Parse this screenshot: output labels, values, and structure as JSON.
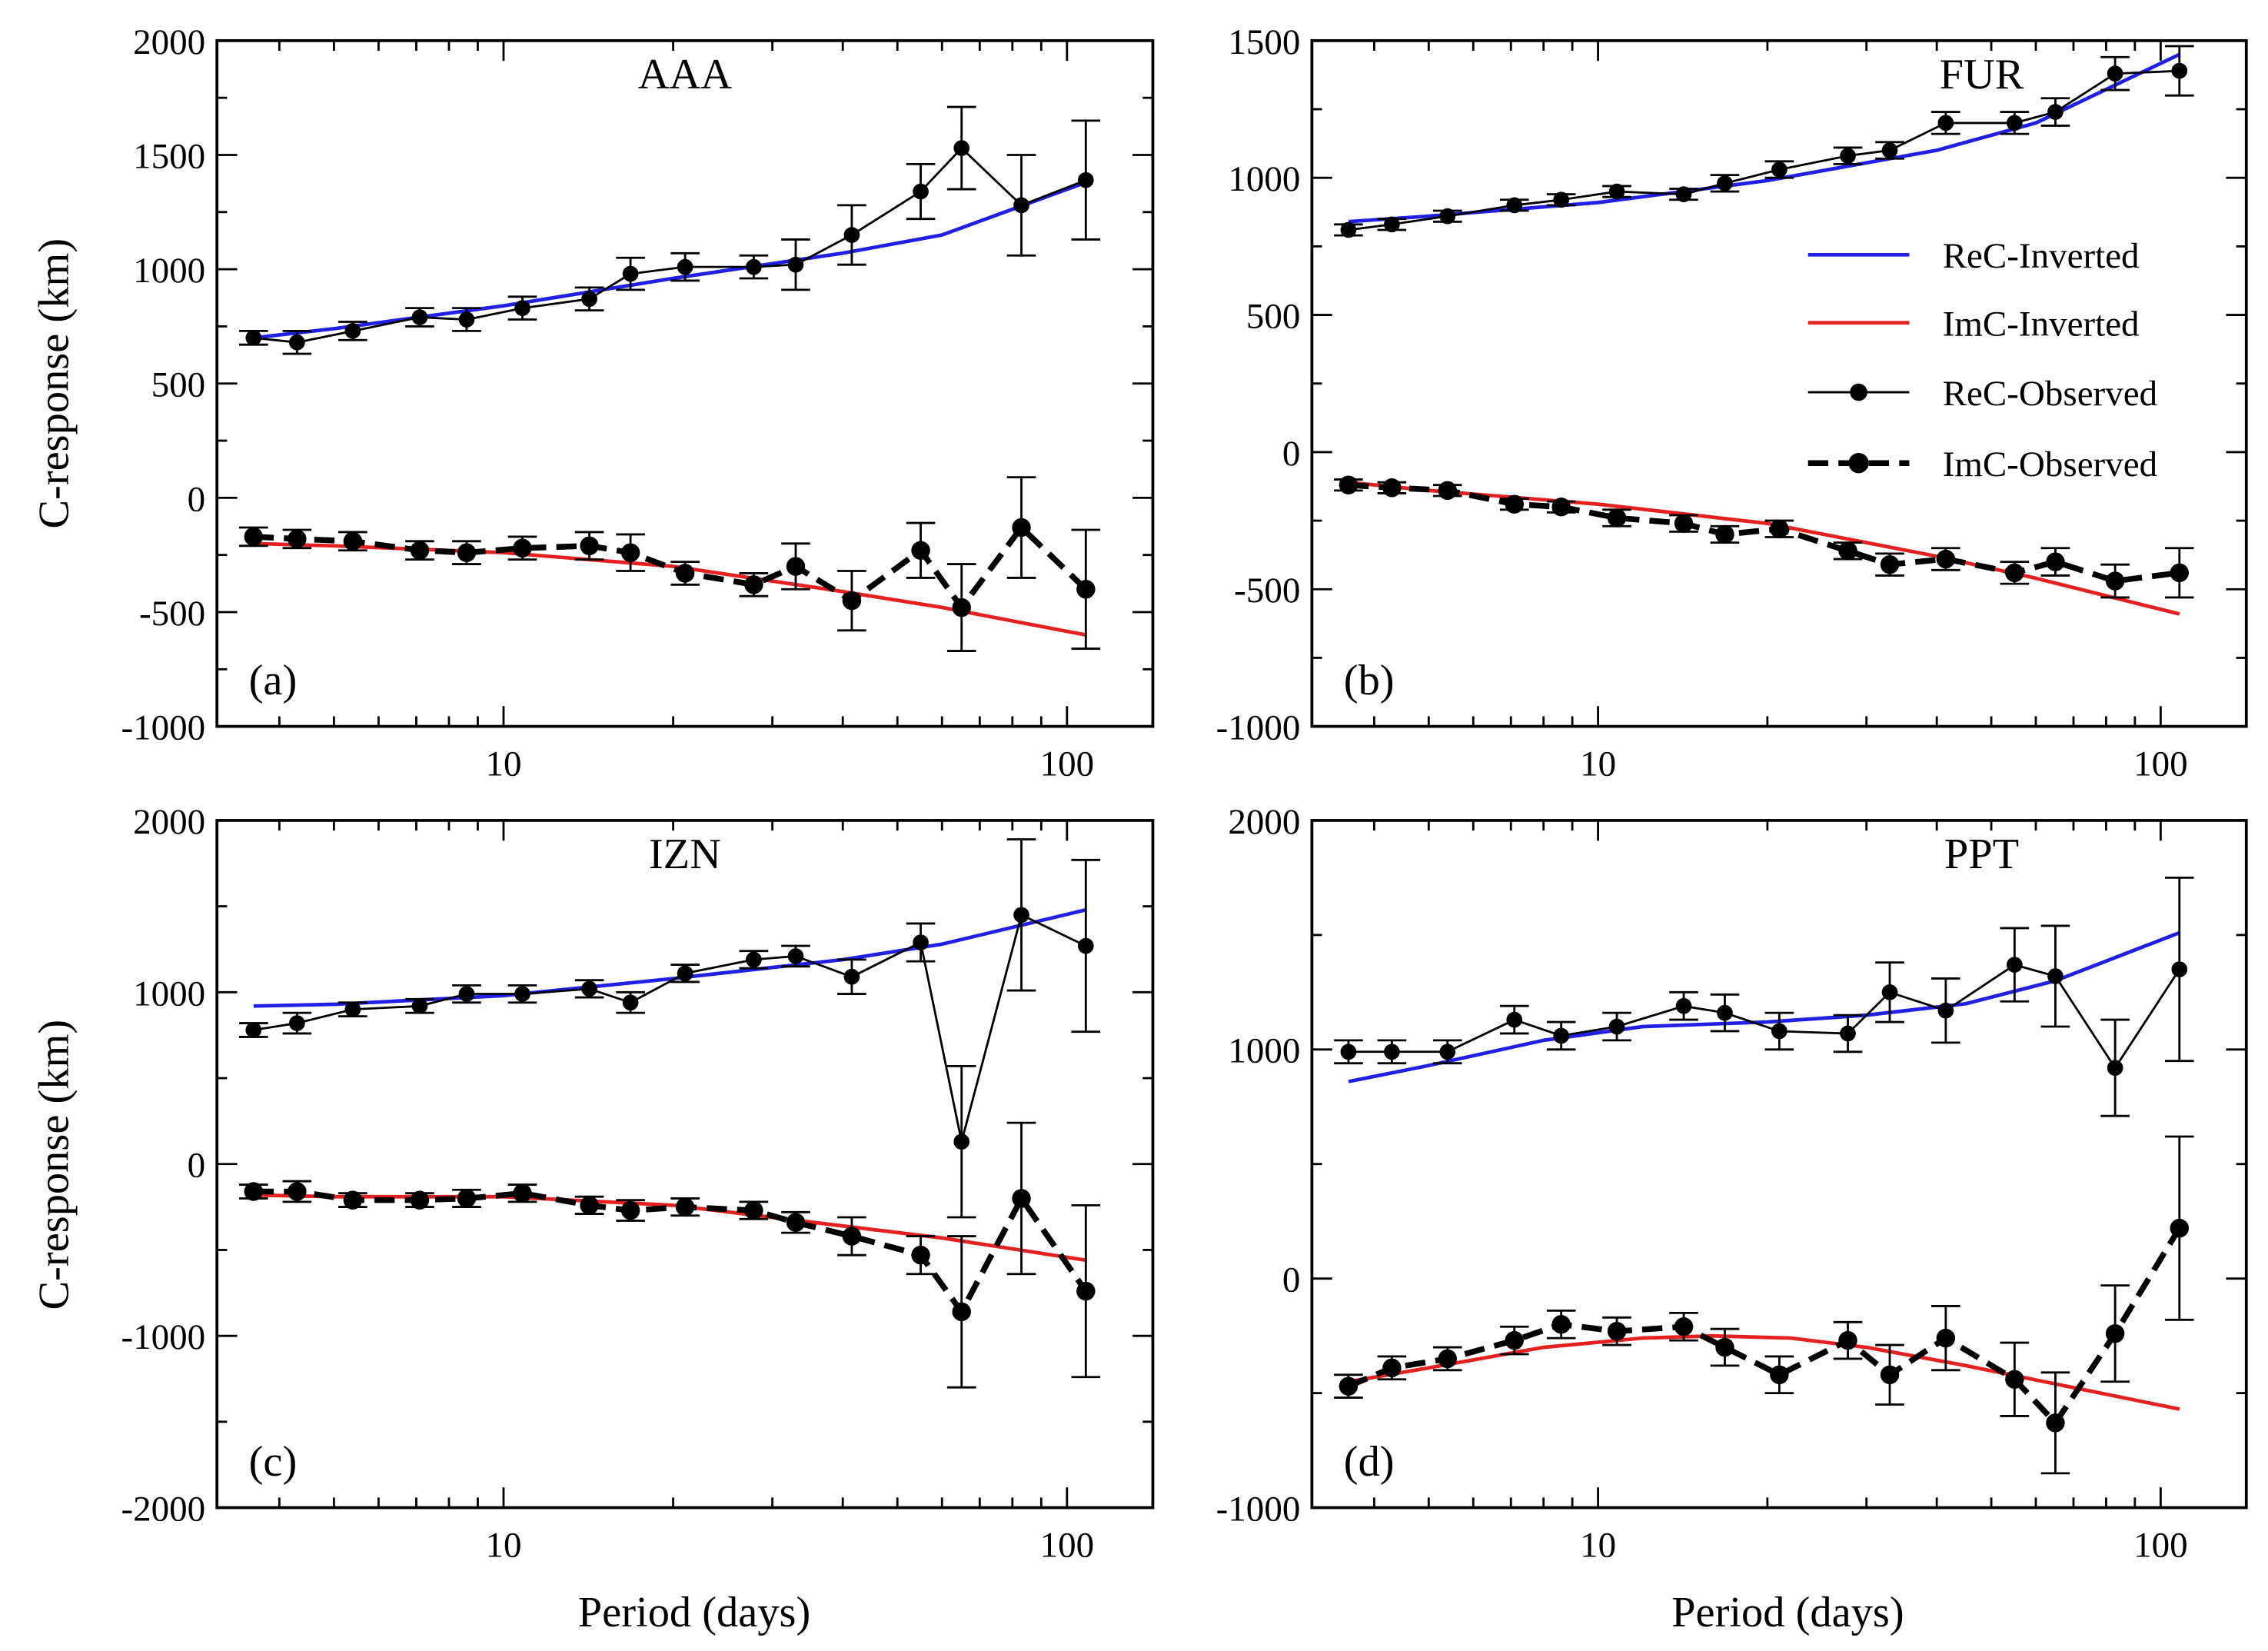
{
  "figure": {
    "ylabel": "C-response (km)",
    "xlabel": "Period (days)",
    "legend": [
      "ReC-Inverted",
      "ImC-Inverted",
      "ReC-Observed",
      "ImC-Observed"
    ],
    "colors": {
      "rec_inverted": "#1f1fe6",
      "imc_inverted": "#e61f1f",
      "observed": "#000000"
    }
  },
  "chart_data": [
    {
      "type": "line",
      "title": "AAA",
      "panel_label": "(a)",
      "xscale": "log",
      "xlim": [
        3.1,
        142
      ],
      "ylim": [
        -1000,
        2000
      ],
      "yticks": [
        -1000,
        -500,
        0,
        500,
        1000,
        1500,
        2000
      ],
      "xticks": [
        10,
        100
      ],
      "period": [
        3.6,
        4.3,
        5.4,
        7.1,
        8.6,
        10.8,
        14.2,
        16.8,
        21,
        27.8,
        33,
        41.5,
        55,
        65,
        83,
        108
      ],
      "rec_observed": [
        700,
        680,
        730,
        790,
        780,
        830,
        870,
        980,
        1010,
        1010,
        1020,
        1150,
        1340,
        1530,
        1280,
        1390
      ],
      "rec_error": [
        30,
        50,
        40,
        40,
        50,
        50,
        50,
        70,
        60,
        50,
        110,
        130,
        120,
        180,
        220,
        260
      ],
      "imc_observed": [
        -170,
        -180,
        -190,
        -230,
        -240,
        -220,
        -210,
        -240,
        -330,
        -380,
        -300,
        -450,
        -230,
        -480,
        -130,
        -400
      ],
      "imc_error": [
        40,
        40,
        40,
        40,
        50,
        50,
        60,
        80,
        50,
        50,
        100,
        130,
        120,
        190,
        220,
        260
      ],
      "rec_inverted": {
        "period": [
          3.6,
          5,
          10,
          20,
          40,
          60,
          108
        ],
        "values": [
          700,
          740,
          840,
          960,
          1070,
          1150,
          1380
        ]
      },
      "imc_inverted": {
        "period": [
          3.6,
          5,
          10,
          20,
          40,
          60,
          108
        ],
        "values": [
          -200,
          -210,
          -240,
          -300,
          -410,
          -480,
          -600
        ]
      }
    },
    {
      "type": "line",
      "title": "FUR",
      "panel_label": "(b)",
      "xscale": "log",
      "xlim": [
        3.1,
        142
      ],
      "ylim": [
        -1000,
        1500
      ],
      "yticks": [
        -1000,
        -500,
        0,
        500,
        1000,
        1500
      ],
      "xticks": [
        10,
        100
      ],
      "period": [
        3.6,
        4.3,
        5.4,
        7.1,
        8.6,
        10.8,
        14.2,
        16.8,
        21,
        27.8,
        33,
        41.5,
        55,
        65,
        83,
        108
      ],
      "rec_observed": [
        810,
        830,
        860,
        900,
        920,
        950,
        940,
        980,
        1030,
        1080,
        1100,
        1200,
        1200,
        1240,
        1380,
        1390
      ],
      "rec_error": [
        20,
        20,
        20,
        20,
        20,
        20,
        20,
        30,
        30,
        30,
        30,
        40,
        40,
        50,
        60,
        90
      ],
      "imc_observed": [
        -120,
        -130,
        -140,
        -190,
        -200,
        -240,
        -260,
        -300,
        -280,
        -360,
        -410,
        -390,
        -440,
        -400,
        -470,
        -440
      ],
      "imc_error": [
        20,
        20,
        20,
        20,
        20,
        30,
        30,
        30,
        30,
        30,
        40,
        40,
        40,
        50,
        60,
        90
      ],
      "rec_inverted": {
        "period": [
          3.6,
          5,
          10,
          20,
          40,
          60,
          108
        ],
        "values": [
          840,
          860,
          910,
          990,
          1100,
          1200,
          1450
        ]
      },
      "imc_inverted": {
        "period": [
          3.6,
          5,
          10,
          20,
          40,
          60,
          108
        ],
        "values": [
          -110,
          -140,
          -190,
          -260,
          -380,
          -460,
          -590
        ]
      }
    },
    {
      "type": "line",
      "title": "IZN",
      "panel_label": "(c)",
      "xscale": "log",
      "xlim": [
        3.1,
        142
      ],
      "ylim": [
        -2000,
        2000
      ],
      "yticks": [
        -2000,
        -1000,
        0,
        1000,
        2000
      ],
      "xticks": [
        10,
        100
      ],
      "period": [
        3.6,
        4.3,
        5.4,
        7.1,
        8.6,
        10.8,
        14.2,
        16.8,
        21,
        27.8,
        33,
        41.5,
        55,
        65,
        83,
        108
      ],
      "rec_observed": [
        780,
        820,
        900,
        920,
        990,
        990,
        1020,
        940,
        1110,
        1190,
        1210,
        1090,
        1290,
        130,
        1450,
        1270
      ],
      "rec_error": [
        40,
        60,
        40,
        40,
        50,
        50,
        50,
        60,
        50,
        50,
        60,
        100,
        110,
        440,
        440,
        500
      ],
      "imc_observed": [
        -160,
        -160,
        -210,
        -210,
        -200,
        -170,
        -240,
        -270,
        -250,
        -270,
        -340,
        -420,
        -530,
        -860,
        -200,
        -740
      ],
      "imc_error": [
        40,
        60,
        40,
        40,
        50,
        50,
        50,
        60,
        50,
        50,
        60,
        110,
        110,
        440,
        440,
        500
      ],
      "rec_inverted": {
        "period": [
          3.6,
          5,
          10,
          20,
          40,
          60,
          108
        ],
        "values": [
          920,
          930,
          980,
          1080,
          1190,
          1280,
          1480
        ]
      },
      "imc_inverted": {
        "period": [
          3.6,
          5,
          10,
          20,
          40,
          60,
          108
        ],
        "values": [
          -180,
          -190,
          -190,
          -240,
          -360,
          -430,
          -560
        ]
      }
    },
    {
      "type": "line",
      "title": "PPT",
      "panel_label": "(d)",
      "xscale": "log",
      "xlim": [
        3.1,
        142
      ],
      "ylim": [
        -1000,
        2000
      ],
      "yticks": [
        -1000,
        0,
        1000,
        2000
      ],
      "xticks": [
        10,
        100
      ],
      "period": [
        3.6,
        4.3,
        5.4,
        7.1,
        8.6,
        10.8,
        14.2,
        16.8,
        21,
        27.8,
        33,
        41.5,
        55,
        65,
        83,
        108
      ],
      "rec_observed": [
        990,
        990,
        990,
        1130,
        1060,
        1100,
        1190,
        1160,
        1080,
        1070,
        1250,
        1170,
        1370,
        1320,
        920,
        1350
      ],
      "rec_error": [
        50,
        50,
        50,
        60,
        60,
        60,
        60,
        80,
        80,
        80,
        130,
        140,
        160,
        220,
        210,
        400
      ],
      "imc_observed": [
        -470,
        -390,
        -350,
        -270,
        -200,
        -230,
        -210,
        -300,
        -420,
        -270,
        -420,
        -260,
        -440,
        -630,
        -240,
        220
      ],
      "imc_error": [
        50,
        50,
        50,
        60,
        60,
        60,
        60,
        80,
        80,
        80,
        130,
        140,
        160,
        220,
        210,
        400
      ],
      "rec_inverted": {
        "period": [
          3.6,
          5,
          8,
          12,
          20,
          30,
          45,
          65,
          108
        ],
        "values": [
          860,
          930,
          1040,
          1100,
          1120,
          1150,
          1200,
          1300,
          1510
        ]
      },
      "imc_inverted": {
        "period": [
          3.6,
          5,
          8,
          12,
          16,
          22,
          30,
          45,
          65,
          108
        ],
        "values": [
          -450,
          -390,
          -300,
          -260,
          -250,
          -260,
          -300,
          -380,
          -460,
          -570
        ]
      }
    }
  ]
}
